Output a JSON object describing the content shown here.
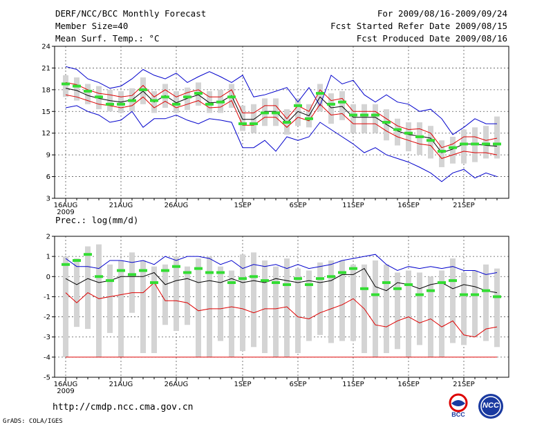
{
  "header": {
    "title": "DERF/NCC/BCC Monthly Forecast",
    "member_size": "Member Size=40",
    "variable": "Mean Surf. Temp.: °C",
    "period": "For 2009/08/16-2009/09/24",
    "started": "Fcst Started Refer Date 2009/08/15",
    "produced": "Fcst Produced Date 2009/08/16"
  },
  "footer": {
    "url": "http://cmdp.ncc.cma.gov.cn",
    "grads": "GrADS: COLA/IGES",
    "logo1": "BCC",
    "logo2": "NCC"
  },
  "colors": {
    "box": "#d4d4d4",
    "envelope": "#0000cc",
    "band": "#dd0000",
    "mean": "#000000",
    "median": "#33dd33"
  },
  "chart_data": [
    {
      "type": "box-plume",
      "title": "Mean Surf. Temp.: °C",
      "xlabel": "",
      "ylabel": "",
      "ylim": [
        3,
        24
      ],
      "yticks": [
        3,
        6,
        9,
        12,
        15,
        18,
        21,
        24
      ],
      "x_tick_labels": [
        "16AUG",
        "21AUG",
        "26AUG",
        "1SEP",
        "6SEP",
        "11SEP",
        "16SEP",
        "21SEP"
      ],
      "x_tick_days": [
        0,
        5,
        10,
        16,
        21,
        26,
        31,
        36
      ],
      "x_year_label": "2009",
      "days": 40,
      "series": [
        {
          "name": "max",
          "values": [
            21.2,
            20.8,
            19.5,
            19.0,
            18.2,
            18.5,
            19.5,
            20.8,
            20.0,
            19.5,
            20.3,
            19.0,
            19.8,
            20.5,
            19.8,
            19.0,
            20.0,
            17.0,
            17.3,
            17.8,
            18.3,
            16.3,
            18.3,
            15.8,
            20.0,
            18.8,
            19.3,
            17.3,
            16.3,
            17.3,
            16.3,
            16.0,
            15.0,
            15.3,
            14.0,
            11.8,
            12.8,
            14.0,
            13.3,
            13.3
          ]
        },
        {
          "name": "upper",
          "values": [
            19.0,
            18.7,
            18.0,
            17.5,
            17.3,
            17.0,
            17.2,
            18.6,
            17.0,
            18.0,
            17.0,
            17.6,
            18.0,
            17.0,
            17.0,
            18.0,
            14.8,
            14.8,
            15.8,
            15.8,
            14.0,
            15.8,
            15.0,
            18.0,
            16.5,
            16.8,
            15.0,
            15.0,
            15.0,
            14.0,
            13.0,
            12.5,
            12.6,
            12.0,
            10.0,
            10.5,
            11.5,
            11.5,
            11.0,
            11.3
          ]
        },
        {
          "name": "mean",
          "values": [
            18.2,
            17.9,
            17.2,
            16.8,
            16.5,
            16.3,
            16.6,
            17.8,
            16.3,
            17.2,
            16.2,
            16.8,
            17.3,
            16.2,
            16.3,
            17.2,
            13.9,
            13.9,
            15.0,
            15.0,
            13.4,
            15.0,
            14.4,
            17.0,
            15.5,
            15.7,
            14.2,
            14.2,
            14.2,
            13.2,
            12.3,
            11.8,
            11.6,
            11.3,
            9.3,
            9.8,
            10.5,
            10.5,
            10.3,
            10.2
          ]
        },
        {
          "name": "lower",
          "values": [
            17.3,
            17.0,
            16.5,
            16.0,
            15.8,
            15.5,
            15.8,
            17.0,
            15.5,
            16.4,
            15.5,
            16.0,
            16.5,
            15.5,
            15.6,
            16.5,
            13.1,
            13.1,
            14.2,
            14.2,
            12.8,
            14.2,
            13.7,
            16.0,
            14.5,
            14.7,
            13.3,
            13.3,
            13.3,
            12.3,
            11.5,
            11.0,
            10.5,
            10.3,
            8.5,
            9.0,
            9.5,
            9.3,
            9.3,
            9.0
          ]
        },
        {
          "name": "min",
          "values": [
            15.5,
            15.8,
            15.0,
            14.5,
            13.5,
            13.8,
            15.0,
            12.8,
            14.0,
            14.0,
            14.5,
            13.8,
            13.3,
            14.0,
            13.8,
            13.5,
            10.0,
            10.0,
            11.0,
            9.5,
            11.5,
            11.0,
            11.5,
            13.5,
            12.5,
            11.5,
            10.5,
            9.3,
            10.0,
            9.0,
            8.5,
            8.0,
            7.3,
            6.5,
            5.3,
            6.5,
            7.0,
            5.8,
            6.5,
            6.0
          ]
        },
        {
          "name": "median",
          "values": [
            18.8,
            18.5,
            17.8,
            17.0,
            16.0,
            16.0,
            16.5,
            18.0,
            16.5,
            17.0,
            16.0,
            17.0,
            17.5,
            16.0,
            16.3,
            17.0,
            13.3,
            13.3,
            14.8,
            14.8,
            13.5,
            15.8,
            14.0,
            17.5,
            16.0,
            16.3,
            14.5,
            14.5,
            14.5,
            13.5,
            12.5,
            12.0,
            11.5,
            11.0,
            9.5,
            10.0,
            10.5,
            10.5,
            10.5,
            10.5
          ]
        },
        {
          "name": "box_top",
          "values": [
            20.0,
            19.7,
            18.8,
            18.5,
            18.0,
            17.8,
            18.2,
            19.7,
            17.8,
            18.8,
            17.8,
            18.3,
            19.0,
            17.8,
            18.0,
            18.8,
            15.8,
            16.0,
            16.8,
            16.8,
            15.3,
            16.8,
            16.0,
            18.8,
            17.5,
            17.8,
            16.0,
            16.0,
            16.0,
            15.3,
            14.0,
            13.5,
            13.5,
            13.0,
            11.0,
            11.5,
            12.5,
            12.8,
            13.0,
            14.3
          ]
        },
        {
          "name": "box_bottom",
          "values": [
            17.0,
            16.5,
            16.0,
            15.3,
            15.0,
            14.8,
            15.0,
            16.0,
            14.8,
            15.5,
            14.8,
            15.2,
            15.8,
            14.8,
            14.8,
            15.5,
            12.3,
            12.0,
            13.0,
            13.0,
            11.8,
            13.0,
            12.8,
            15.0,
            13.3,
            13.8,
            12.0,
            12.0,
            12.0,
            11.0,
            10.3,
            9.5,
            9.0,
            8.5,
            7.3,
            7.8,
            7.8,
            8.0,
            8.5,
            8.5
          ]
        }
      ]
    },
    {
      "type": "box-plume",
      "title": "Prec.: log(mm/d)",
      "xlabel": "",
      "ylabel": "",
      "ylim": [
        -5,
        2
      ],
      "yticks": [
        -5,
        -4,
        -3,
        -2,
        -1,
        0,
        1,
        2
      ],
      "x_tick_labels": [
        "16AUG",
        "21AUG",
        "26AUG",
        "1SEP",
        "6SEP",
        "11SEP",
        "16SEP",
        "21SEP"
      ],
      "x_tick_days": [
        0,
        5,
        10,
        16,
        21,
        26,
        31,
        36
      ],
      "x_year_label": "2009",
      "days": 40,
      "series": [
        {
          "name": "max",
          "values": [
            0.9,
            0.5,
            0.5,
            0.4,
            0.8,
            0.8,
            0.7,
            0.8,
            0.6,
            1.0,
            0.8,
            1.0,
            1.0,
            0.9,
            0.6,
            0.8,
            0.4,
            0.6,
            0.5,
            0.6,
            0.4,
            0.6,
            0.4,
            0.5,
            0.6,
            0.8,
            0.9,
            1.0,
            1.1,
            0.6,
            0.3,
            0.5,
            0.4,
            0.5,
            0.4,
            0.5,
            0.3,
            0.3,
            0.1,
            0.2
          ]
        },
        {
          "name": "mean",
          "values": [
            -0.1,
            -0.4,
            -0.1,
            -0.3,
            -0.2,
            0.0,
            0.0,
            0.0,
            0.2,
            -0.4,
            -0.2,
            -0.1,
            -0.3,
            -0.2,
            -0.3,
            -0.1,
            -0.3,
            -0.2,
            -0.3,
            -0.1,
            -0.2,
            -0.3,
            -0.2,
            -0.3,
            -0.2,
            0.1,
            0.1,
            0.4,
            -0.5,
            -0.7,
            -0.3,
            -0.4,
            -0.6,
            -0.4,
            -0.3,
            -0.6,
            -0.4,
            -0.5,
            -0.7,
            -0.8
          ]
        },
        {
          "name": "min_red",
          "values": [
            -0.8,
            -1.3,
            -0.8,
            -1.1,
            -1.0,
            -0.9,
            -0.8,
            -0.8,
            -0.3,
            -1.2,
            -1.2,
            -1.3,
            -1.7,
            -1.6,
            -1.6,
            -1.5,
            -1.6,
            -1.8,
            -1.6,
            -1.6,
            -1.5,
            -2.0,
            -2.1,
            -1.8,
            -1.6,
            -1.4,
            -1.1,
            -1.6,
            -2.4,
            -2.5,
            -2.2,
            -2.0,
            -2.3,
            -2.1,
            -2.5,
            -2.2,
            -2.9,
            -3.0,
            -2.6,
            -2.5
          ]
        },
        {
          "name": "floor",
          "values": [
            -4,
            -4,
            -4,
            -4,
            -4,
            -4,
            -4,
            -4,
            -4,
            -4,
            -4,
            -4,
            -4,
            -4,
            -4,
            -4,
            -4,
            -4,
            -4,
            -4,
            -4,
            -4,
            -4,
            -4,
            -4,
            -4,
            -4,
            -4,
            -4,
            -4,
            -4,
            -4,
            -4,
            -4,
            -4,
            -4,
            -4,
            -4,
            -4,
            -4
          ]
        },
        {
          "name": "median",
          "values": [
            0.6,
            0.8,
            1.1,
            0.0,
            -0.2,
            0.3,
            0.1,
            0.3,
            -0.3,
            0.3,
            0.5,
            0.2,
            0.4,
            0.2,
            0.2,
            -0.3,
            -0.1,
            0.0,
            -0.2,
            -0.3,
            -0.4,
            -0.1,
            -0.4,
            -0.1,
            0.0,
            0.2,
            0.4,
            -0.6,
            -0.9,
            -0.3,
            -0.6,
            -0.4,
            -0.9,
            -0.7,
            -0.3,
            -0.2,
            -0.9,
            -0.9,
            -0.7,
            -1.0
          ]
        },
        {
          "name": "box_top",
          "values": [
            1.0,
            0.9,
            1.5,
            1.6,
            0.6,
            0.8,
            1.2,
            0.8,
            0.5,
            0.6,
            1.0,
            0.5,
            0.9,
            1.0,
            0.5,
            0.3,
            1.1,
            1.2,
            0.8,
            0.5,
            0.9,
            0.4,
            0.3,
            0.7,
            0.8,
            0.8,
            0.6,
            0.6,
            0.8,
            0.6,
            0.2,
            0.3,
            0.2,
            0.0,
            0.3,
            0.9,
            0.2,
            0.3,
            0.6,
            0.4
          ]
        },
        {
          "name": "box_bottom",
          "values": [
            -4.0,
            -2.5,
            -2.6,
            -4.0,
            -2.8,
            -4.0,
            -1.8,
            -3.8,
            -3.8,
            -2.4,
            -2.7,
            -2.4,
            -4.0,
            -4.0,
            -3.2,
            -4.0,
            -3.7,
            -3.5,
            -3.8,
            -4.0,
            -4.0,
            -3.8,
            -3.2,
            -2.9,
            -3.3,
            -3.2,
            -3.2,
            -3.8,
            -4.0,
            -3.8,
            -3.6,
            -4.0,
            -3.4,
            -4.0,
            -4.0,
            -3.3,
            -3.4,
            -3.0,
            -3.2,
            -3.5
          ]
        }
      ]
    }
  ]
}
